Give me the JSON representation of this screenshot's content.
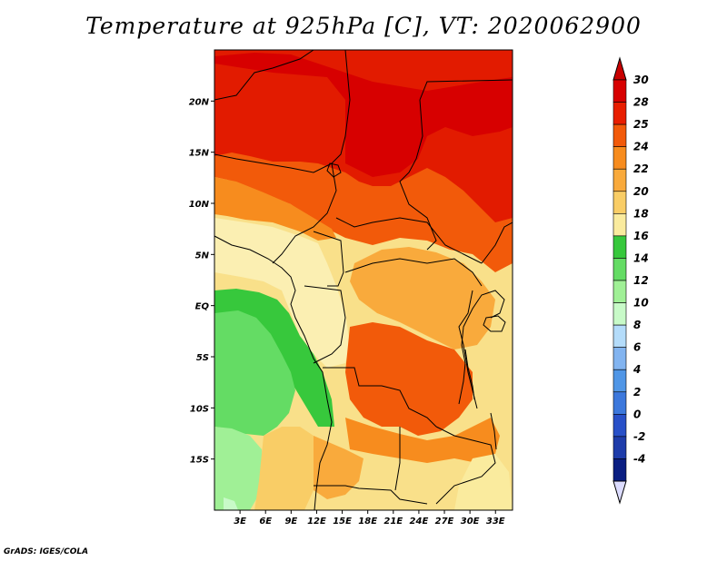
{
  "title": "Temperature at 925hPa [C], VT: 2020062900",
  "credit": "GrADS: IGES/COLA",
  "map": {
    "lon_range": [
      0,
      35
    ],
    "lat_range": [
      -20,
      25
    ],
    "lat_ticks": [
      {
        "value": 20,
        "label": "20N"
      },
      {
        "value": 15,
        "label": "15N"
      },
      {
        "value": 10,
        "label": "10N"
      },
      {
        "value": 5,
        "label": "5N"
      },
      {
        "value": 0,
        "label": "EQ"
      },
      {
        "value": -5,
        "label": "5S"
      },
      {
        "value": -10,
        "label": "10S"
      },
      {
        "value": -15,
        "label": "15S"
      }
    ],
    "lon_ticks": [
      {
        "value": 3,
        "label": "3E"
      },
      {
        "value": 6,
        "label": "6E"
      },
      {
        "value": 9,
        "label": "9E"
      },
      {
        "value": 12,
        "label": "12E"
      },
      {
        "value": 15,
        "label": "15E"
      },
      {
        "value": 18,
        "label": "18E"
      },
      {
        "value": 21,
        "label": "21E"
      },
      {
        "value": 24,
        "label": "24E"
      },
      {
        "value": 27,
        "label": "27E"
      },
      {
        "value": 30,
        "label": "30E"
      },
      {
        "value": 33,
        "label": "33E"
      }
    ],
    "background_color": "#f9e08a"
  },
  "colorbar": {
    "bins": [
      {
        "label": "30",
        "color": "#d70000"
      },
      {
        "label": "28",
        "color": "#e81e00"
      },
      {
        "label": "25",
        "color": "#f25a0a"
      },
      {
        "label": "24",
        "color": "#f78c1e"
      },
      {
        "label": "22",
        "color": "#f9aa3c"
      },
      {
        "label": "20",
        "color": "#f9cd66"
      },
      {
        "label": "18",
        "color": "#faeb9e"
      },
      {
        "label": "16",
        "color": "#37c83c"
      },
      {
        "label": "14",
        "color": "#64dc64"
      },
      {
        "label": "12",
        "color": "#a0f096"
      },
      {
        "label": "10",
        "color": "#c8fac8"
      },
      {
        "label": "8",
        "color": "#b4dcfa"
      },
      {
        "label": "6",
        "color": "#82b4f0"
      },
      {
        "label": "4",
        "color": "#5096e6"
      },
      {
        "label": "2",
        "color": "#3c78dc"
      },
      {
        "label": "0",
        "color": "#2850c8"
      },
      {
        "label": "-2",
        "color": "#1e3caa"
      },
      {
        "label": "-4",
        "color": "#0a1e82"
      }
    ],
    "top_triangle_color": "#c80000",
    "bottom_triangle_color": "#dcdcff"
  }
}
